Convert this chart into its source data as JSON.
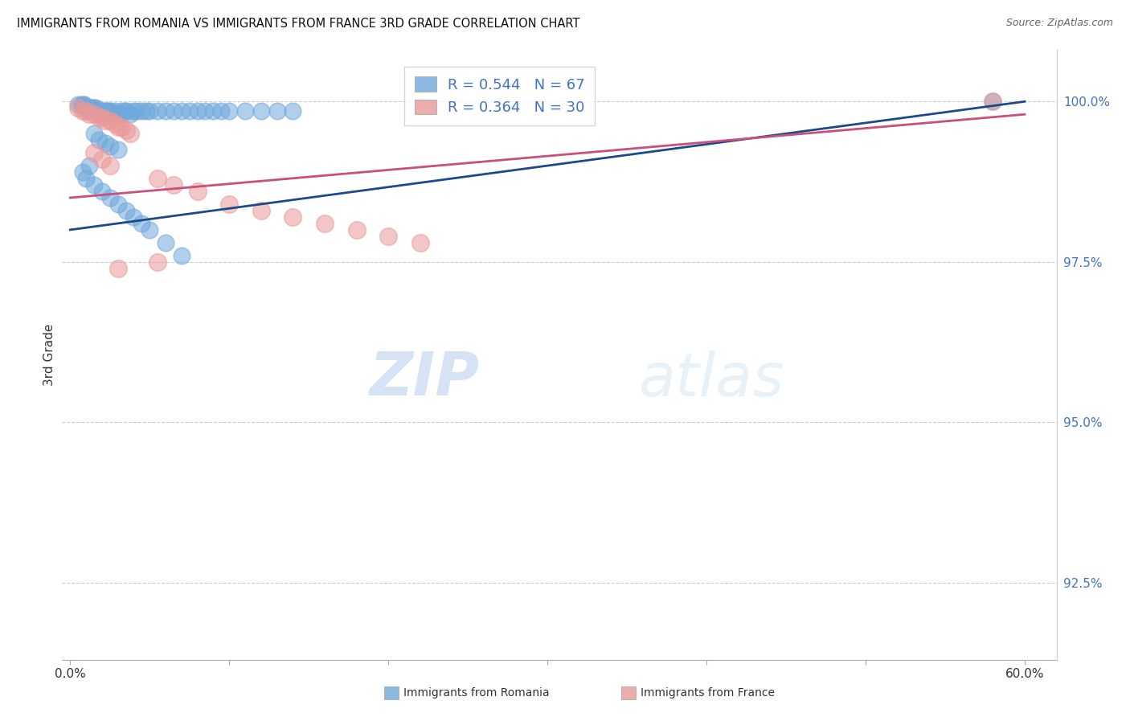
{
  "title": "IMMIGRANTS FROM ROMANIA VS IMMIGRANTS FROM FRANCE 3RD GRADE CORRELATION CHART",
  "source": "Source: ZipAtlas.com",
  "ylabel": "3rd Grade",
  "ylabel_right_labels": [
    "100.0%",
    "97.5%",
    "95.0%",
    "92.5%"
  ],
  "ylabel_right_values": [
    1.0,
    0.975,
    0.95,
    0.925
  ],
  "xlim": [
    0.0,
    0.6
  ],
  "ylim": [
    0.913,
    1.008
  ],
  "romania_R": 0.544,
  "romania_N": 67,
  "france_R": 0.364,
  "france_N": 30,
  "romania_color": "#6fa8dc",
  "france_color": "#ea9999",
  "trendline_romania_color": "#1a4a8a",
  "trendline_france_color": "#c94f7c",
  "legend_text_color": "#4472c4",
  "watermark_zip": "ZIP",
  "watermark_atlas": "atlas",
  "bottom_legend_romania": "Immigrants from Romania",
  "bottom_legend_france": "Immigrants from France",
  "ro_x": [
    0.005,
    0.007,
    0.008,
    0.009,
    0.01,
    0.011,
    0.012,
    0.013,
    0.014,
    0.015,
    0.016,
    0.017,
    0.018,
    0.019,
    0.02,
    0.021,
    0.022,
    0.023,
    0.024,
    0.025,
    0.026,
    0.027,
    0.028,
    0.03,
    0.031,
    0.032,
    0.034,
    0.036,
    0.038,
    0.04,
    0.042,
    0.045,
    0.048,
    0.05,
    0.055,
    0.06,
    0.065,
    0.07,
    0.075,
    0.08,
    0.085,
    0.09,
    0.095,
    0.1,
    0.11,
    0.12,
    0.13,
    0.14,
    0.015,
    0.018,
    0.022,
    0.025,
    0.03,
    0.012,
    0.008,
    0.01,
    0.015,
    0.02,
    0.025,
    0.03,
    0.035,
    0.04,
    0.045,
    0.05,
    0.06,
    0.07,
    0.58
  ],
  "ro_y": [
    0.9995,
    0.9995,
    0.9995,
    0.9995,
    0.999,
    0.999,
    0.9985,
    0.999,
    0.999,
    0.999,
    0.999,
    0.9985,
    0.9985,
    0.998,
    0.9985,
    0.9985,
    0.9985,
    0.9985,
    0.9985,
    0.9985,
    0.998,
    0.998,
    0.9985,
    0.998,
    0.998,
    0.9985,
    0.9985,
    0.9985,
    0.998,
    0.9985,
    0.9985,
    0.9985,
    0.9985,
    0.9985,
    0.9985,
    0.9985,
    0.9985,
    0.9985,
    0.9985,
    0.9985,
    0.9985,
    0.9985,
    0.9985,
    0.9985,
    0.9985,
    0.9985,
    0.9985,
    0.9985,
    0.995,
    0.994,
    0.9935,
    0.993,
    0.9925,
    0.99,
    0.989,
    0.988,
    0.987,
    0.986,
    0.985,
    0.984,
    0.983,
    0.982,
    0.981,
    0.98,
    0.978,
    0.976,
    1.0
  ],
  "fr_x": [
    0.005,
    0.008,
    0.01,
    0.012,
    0.015,
    0.018,
    0.02,
    0.022,
    0.025,
    0.028,
    0.03,
    0.032,
    0.035,
    0.038,
    0.015,
    0.02,
    0.025,
    0.055,
    0.065,
    0.08,
    0.1,
    0.12,
    0.14,
    0.16,
    0.18,
    0.2,
    0.22,
    0.055,
    0.03,
    0.58
  ],
  "fr_y": [
    0.999,
    0.9985,
    0.9985,
    0.998,
    0.998,
    0.9975,
    0.9975,
    0.997,
    0.997,
    0.9965,
    0.996,
    0.996,
    0.9955,
    0.995,
    0.992,
    0.991,
    0.99,
    0.988,
    0.987,
    0.986,
    0.984,
    0.983,
    0.982,
    0.981,
    0.98,
    0.979,
    0.978,
    0.975,
    0.974,
    1.0
  ],
  "ro_trend": [
    0.98,
    1.0
  ],
  "fr_trend": [
    0.985,
    0.998
  ],
  "trend_x": [
    0.0,
    0.6
  ]
}
